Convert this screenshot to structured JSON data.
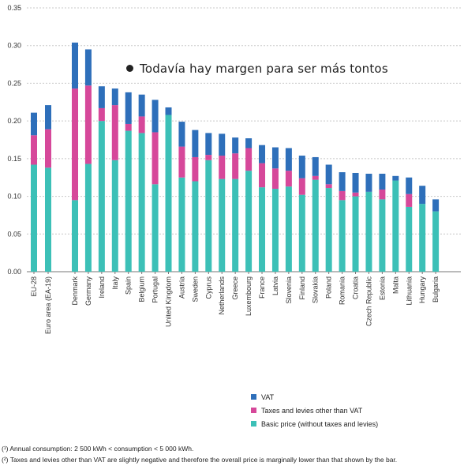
{
  "chart_data": {
    "type": "bar",
    "stacked": true,
    "ylim": [
      0,
      0.35
    ],
    "yticks": [
      "0.00",
      "0.05",
      "0.10",
      "0.15",
      "0.20",
      "0.25",
      "0.30",
      "0.35"
    ],
    "grid": true,
    "categories": [
      "EU-28",
      "Euro area (EA-19)",
      "Denmark",
      "Germany",
      "Ireland",
      "Italy",
      "Spain",
      "Belgium",
      "Portugal",
      "United Kingdom",
      "Austria",
      "Sweden",
      "Cyprus",
      "Netherlands",
      "Greece",
      "Luxembourg",
      "France",
      "Latvia",
      "Slovenia",
      "Finland",
      "Slovakia",
      "Poland",
      "Romania",
      "Croatia",
      "Czech Republic",
      "Estonia",
      "Malta",
      "Lithuania",
      "Hungary",
      "Bulgaria"
    ],
    "series": [
      {
        "name": "Basic price (without taxes and levies)",
        "color": "#3cc0b7",
        "values": [
          0.142,
          0.138,
          0.095,
          0.143,
          0.2,
          0.148,
          0.187,
          0.184,
          0.116,
          0.208,
          0.125,
          0.12,
          0.148,
          0.123,
          0.123,
          0.134,
          0.112,
          0.11,
          0.113,
          0.102,
          0.122,
          0.111,
          0.095,
          0.1,
          0.106,
          0.096,
          0.121,
          0.086,
          0.09,
          0.08
        ]
      },
      {
        "name": "Taxes and levies other than VAT",
        "color": "#d6489a",
        "values": [
          0.039,
          0.051,
          0.148,
          0.104,
          0.017,
          0.073,
          0.009,
          0.022,
          0.069,
          0.0,
          0.041,
          0.032,
          0.007,
          0.031,
          0.034,
          0.03,
          0.032,
          0.027,
          0.021,
          0.022,
          0.005,
          0.005,
          0.012,
          0.005,
          0.0,
          0.013,
          0.0,
          0.017,
          0.0,
          0.0
        ]
      },
      {
        "name": "VAT",
        "color": "#2e6fba",
        "values": [
          0.03,
          0.032,
          0.061,
          0.048,
          0.029,
          0.022,
          0.042,
          0.029,
          0.043,
          0.01,
          0.033,
          0.036,
          0.029,
          0.029,
          0.021,
          0.013,
          0.024,
          0.028,
          0.03,
          0.03,
          0.025,
          0.026,
          0.025,
          0.026,
          0.024,
          0.021,
          0.006,
          0.022,
          0.024,
          0.016
        ]
      }
    ]
  },
  "annotation": "Todavía hay margen para ser más tontos",
  "legend": {
    "items": [
      {
        "label": "VAT",
        "color": "#2e6fba"
      },
      {
        "label": "Taxes and levies other than VAT",
        "color": "#d6489a"
      },
      {
        "label": "Basic price (without taxes and levies)",
        "color": "#3cc0b7"
      }
    ]
  },
  "footnotes": {
    "note1": "(¹) Annual consumption: 2 500 kWh < consumption < 5 000 kWh.",
    "note2": "(²) Taxes and levies other than VAT are slightly negative and therefore the overall price is marginally lower than that shown by the bar."
  }
}
